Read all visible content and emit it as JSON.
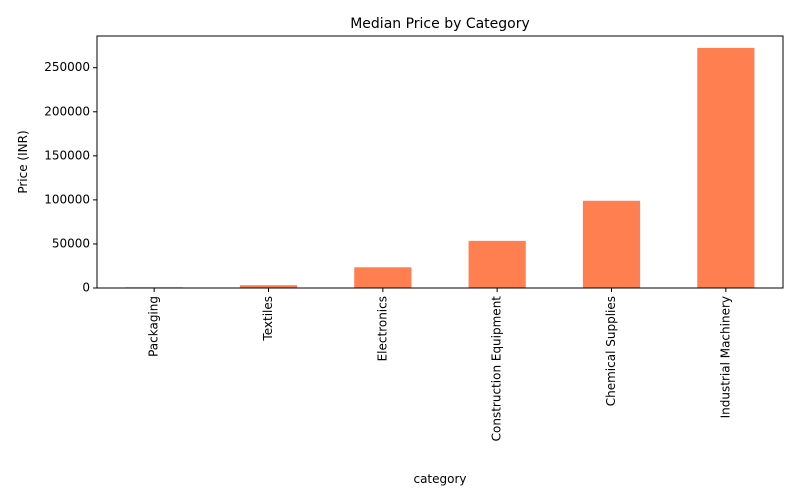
{
  "chart_data": {
    "type": "bar",
    "title": "Median Price by Category",
    "xlabel": "category",
    "ylabel": "Price (INR)",
    "categories": [
      "Packaging",
      "Textiles",
      "Electronics",
      "Construction Equipment",
      "Chemical Supplies",
      "Industrial Machinery"
    ],
    "values": [
      800,
      3200,
      23500,
      53500,
      99000,
      272500
    ],
    "ylim": [
      0,
      286000
    ],
    "yticks": [
      0,
      50000,
      100000,
      150000,
      200000,
      250000
    ],
    "ytick_labels": [
      "0",
      "50000",
      "100000",
      "150000",
      "200000",
      "250000"
    ],
    "grid": false,
    "legend": "none",
    "colors": {
      "bar": "#ff7f50",
      "axis": "#000000"
    }
  }
}
